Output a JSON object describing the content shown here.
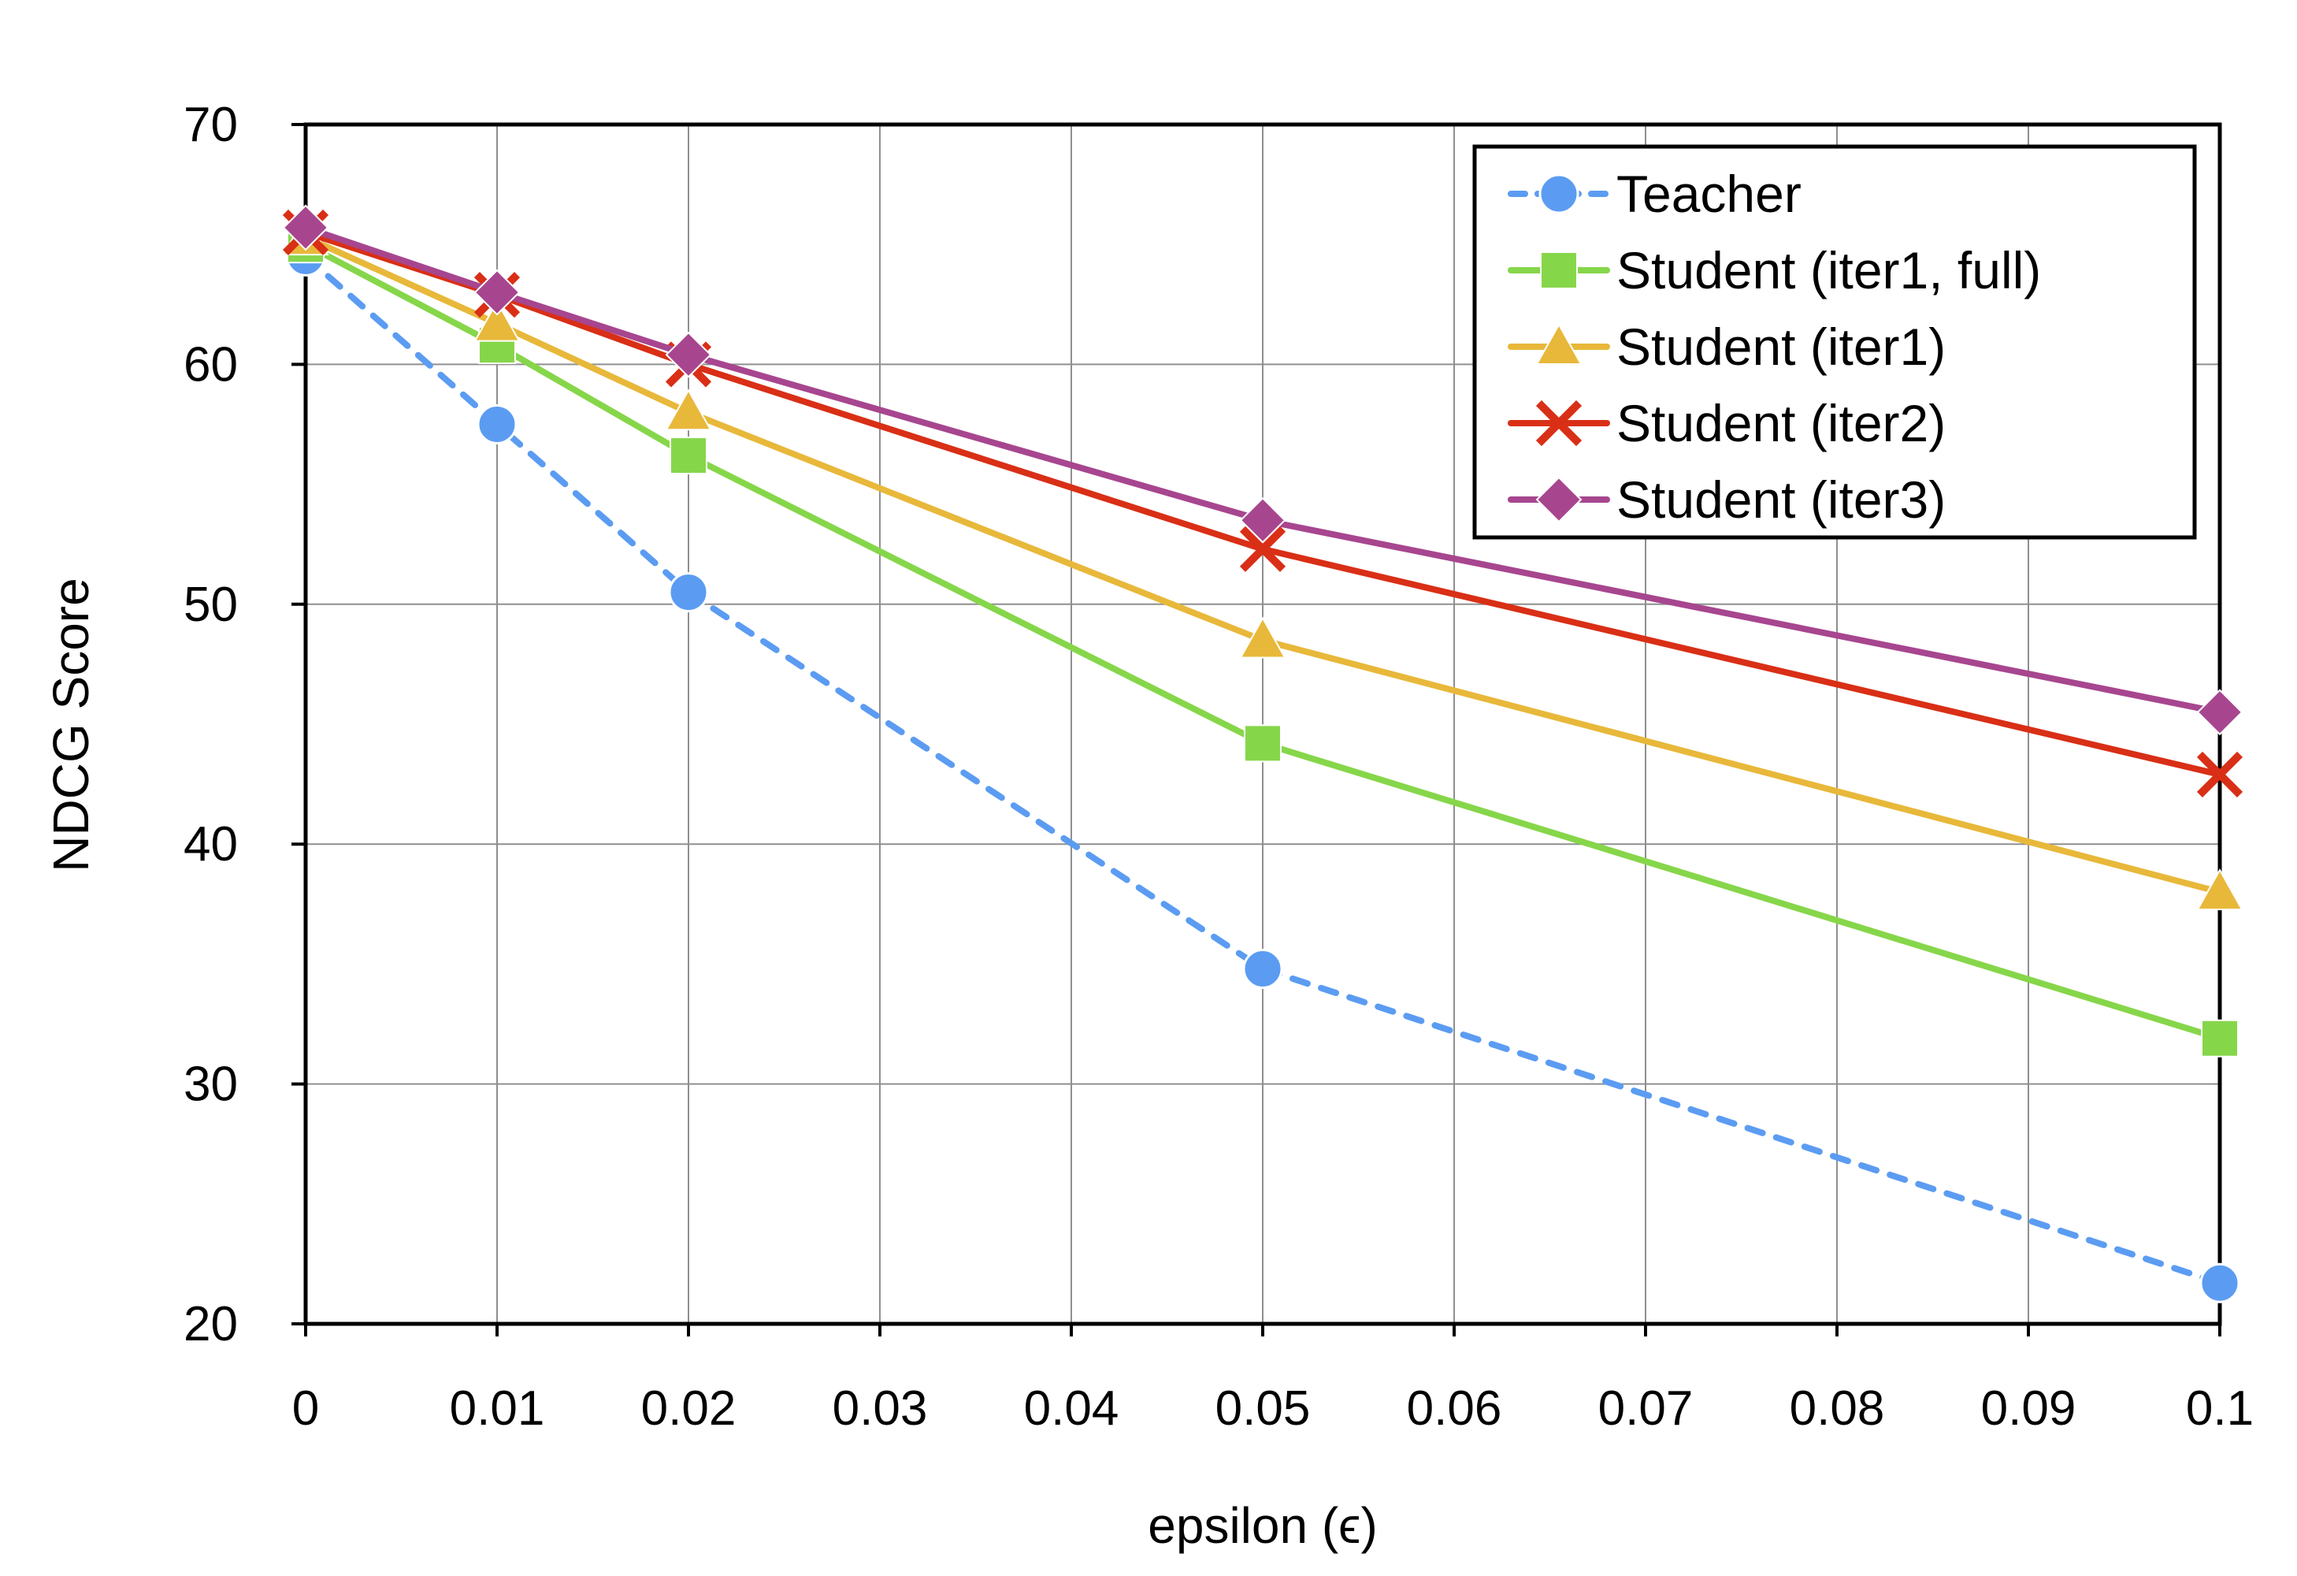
{
  "chart_data": {
    "type": "line",
    "xlabel": "epsilon (ϵ)",
    "ylabel": "NDCG Score",
    "xlim": [
      0,
      0.1
    ],
    "ylim": [
      20,
      70
    ],
    "x_ticks": [
      0,
      0.01,
      0.02,
      0.03,
      0.04,
      0.05,
      0.06,
      0.07,
      0.08,
      0.09,
      0.1
    ],
    "x_tick_labels": [
      "0",
      "0.01",
      "0.02",
      "0.03",
      "0.04",
      "0.05",
      "0.06",
      "0.07",
      "0.08",
      "0.09",
      "0.1"
    ],
    "y_ticks": [
      20,
      30,
      40,
      50,
      60,
      70
    ],
    "y_tick_labels": [
      "20",
      "30",
      "40",
      "50",
      "60",
      "70"
    ],
    "grid": true,
    "legend_position": "top-right",
    "series": [
      {
        "name": "Teacher",
        "color": "#5b9cf2",
        "marker": "circle",
        "line_style": "dashed",
        "x": [
          0,
          0.01,
          0.02,
          0.05,
          0.1
        ],
        "values": [
          64.5,
          57.5,
          50.5,
          34.8,
          21.7
        ]
      },
      {
        "name": "Student (iter1, full)",
        "color": "#86d64a",
        "marker": "square",
        "line_style": "solid",
        "x": [
          0,
          0.01,
          0.02,
          0.05,
          0.1
        ],
        "values": [
          65.0,
          60.8,
          56.2,
          44.2,
          31.9
        ]
      },
      {
        "name": "Student (iter1)",
        "color": "#e8b83a",
        "marker": "triangle",
        "line_style": "solid",
        "x": [
          0,
          0.01,
          0.02,
          0.05,
          0.1
        ],
        "values": [
          65.3,
          61.7,
          58.0,
          48.5,
          38.0
        ]
      },
      {
        "name": "Student (iter2)",
        "color": "#d92f16",
        "marker": "x",
        "line_style": "solid",
        "x": [
          0,
          0.01,
          0.02,
          0.05,
          0.1
        ],
        "values": [
          65.5,
          62.9,
          60.0,
          52.3,
          42.9
        ]
      },
      {
        "name": "Student (iter3)",
        "color": "#a7468f",
        "marker": "diamond",
        "line_style": "solid",
        "x": [
          0,
          0.01,
          0.02,
          0.05,
          0.1
        ],
        "values": [
          65.7,
          63.0,
          60.4,
          53.5,
          45.5
        ]
      }
    ]
  }
}
